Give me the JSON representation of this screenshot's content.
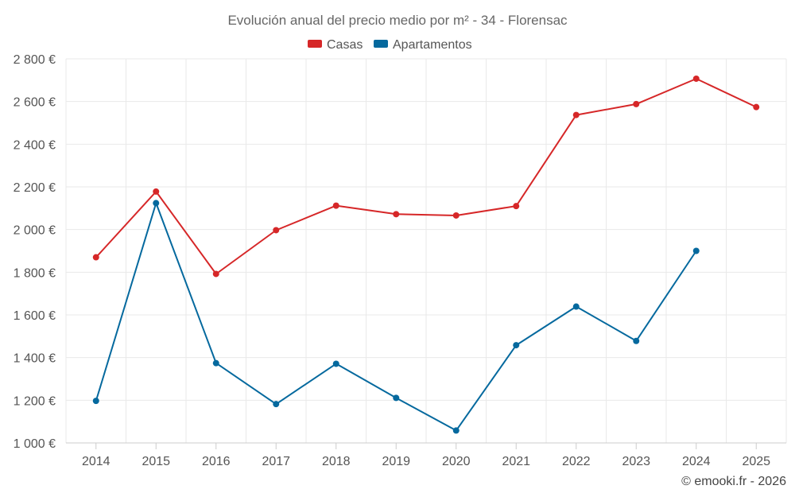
{
  "chart_data": {
    "type": "line",
    "title": "Evolución anual del precio medio por m² - 34 - Florensac",
    "xlabel": "",
    "ylabel": "",
    "categories": [
      "2014",
      "2015",
      "2016",
      "2017",
      "2018",
      "2019",
      "2020",
      "2021",
      "2022",
      "2023",
      "2024",
      "2025"
    ],
    "ylim": [
      1000,
      2800
    ],
    "yticks": [
      1000,
      1200,
      1400,
      1600,
      1800,
      2000,
      2200,
      2400,
      2600,
      2800
    ],
    "ytick_labels": [
      "1 000 €",
      "1 200 €",
      "1 400 €",
      "1 600 €",
      "1 800 €",
      "2 000 €",
      "2 200 €",
      "2 400 €",
      "2 600 €",
      "2 800 €"
    ],
    "grid": true,
    "legend_position": "top-center",
    "series": [
      {
        "name": "Casas",
        "color": "#d62728",
        "values": [
          1870,
          2178,
          1792,
          1997,
          2112,
          2072,
          2066,
          2110,
          2537,
          2588,
          2707,
          2574
        ]
      },
      {
        "name": "Apartamentos",
        "color": "#05699e",
        "values": [
          1197,
          2124,
          1374,
          1182,
          1371,
          1211,
          1058,
          1458,
          1639,
          1478,
          1900,
          null
        ]
      }
    ]
  },
  "credit": "© emooki.fr - 2026"
}
